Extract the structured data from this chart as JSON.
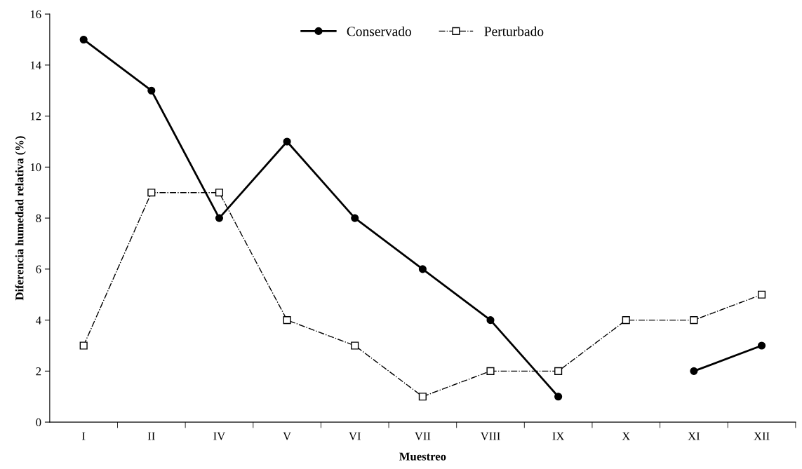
{
  "chart_data": {
    "type": "line",
    "xlabel": "Muestreo",
    "ylabel": "Diferencia humedad relativa (%)",
    "categories": [
      "I",
      "II",
      "IV",
      "V",
      "VI",
      "VII",
      "VIII",
      "IX",
      "X",
      "XI",
      "XII"
    ],
    "series": [
      {
        "name": "Conservado",
        "color": "#000000",
        "marker": "circle",
        "line_style": "solid",
        "values": [
          15,
          13,
          8,
          11,
          8,
          6,
          4,
          1,
          null,
          2,
          3
        ]
      },
      {
        "name": "Perturbado",
        "color": "#000000",
        "marker": "square",
        "line_style": "dashdot",
        "values": [
          3,
          9,
          9,
          4,
          3,
          1,
          2,
          2,
          4,
          4,
          5
        ]
      }
    ],
    "ylim": [
      0,
      16
    ],
    "yticks": [
      0,
      2,
      4,
      6,
      8,
      10,
      12,
      14,
      16
    ],
    "grid": false,
    "legend": "top"
  }
}
